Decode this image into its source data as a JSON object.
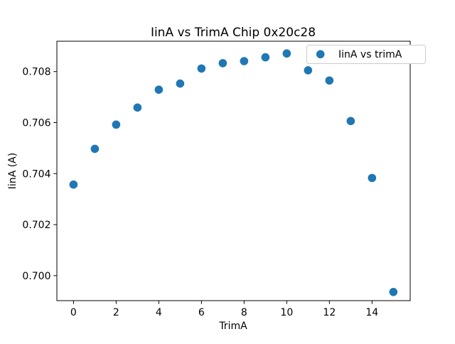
{
  "chart_data": {
    "type": "scatter",
    "title": "IinA vs TrimA Chip 0x20c28",
    "xlabel": "TrimA",
    "ylabel": "IinA (A)",
    "legend": {
      "label": "IinA vs trimA",
      "position": "upper right"
    },
    "x": [
      0,
      1,
      2,
      3,
      4,
      5,
      6,
      7,
      8,
      9,
      10,
      11,
      12,
      13,
      14,
      15
    ],
    "y": [
      0.70357,
      0.70497,
      0.70592,
      0.70659,
      0.70729,
      0.70753,
      0.70812,
      0.70833,
      0.70841,
      0.70856,
      0.70871,
      0.70805,
      0.70765,
      0.70606,
      0.70383,
      0.69936
    ],
    "xticks": [
      0,
      2,
      4,
      6,
      8,
      10,
      12,
      14
    ],
    "yticks": [
      0.7,
      0.702,
      0.704,
      0.706,
      0.708
    ],
    "ytick_labels": [
      "0.700",
      "0.702",
      "0.704",
      "0.706",
      "0.708"
    ],
    "xlim": [
      -0.78,
      15.79
    ],
    "ylim": [
      0.69902,
      0.70919
    ],
    "grid": false,
    "marker": {
      "shape": "circle",
      "color": "#1f77b4",
      "radius_px": 5.8
    },
    "colors": {
      "background": "#ffffff",
      "spine": "#000000",
      "legend_border": "#cccccc",
      "legend_background": "#ffffff"
    }
  }
}
